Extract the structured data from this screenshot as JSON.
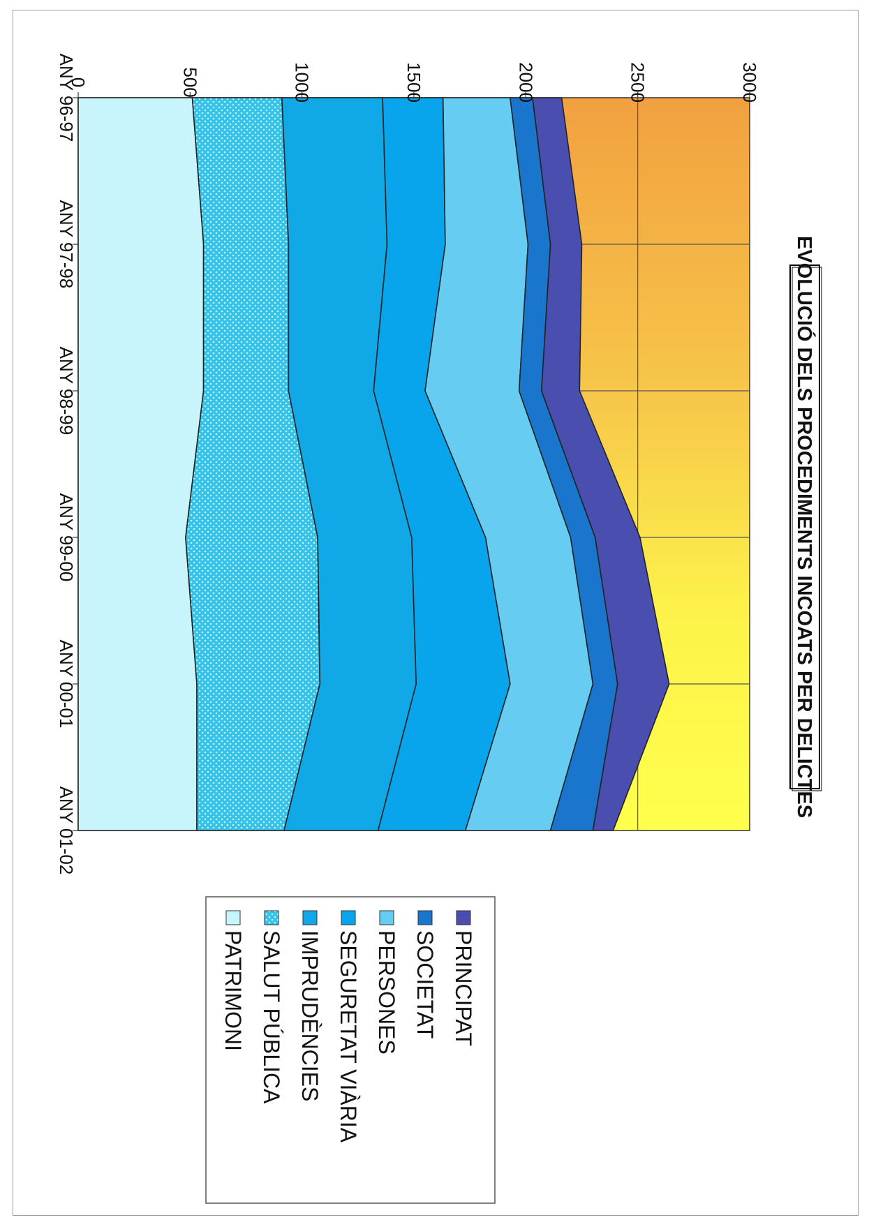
{
  "chart_data": {
    "type": "area",
    "stacked": true,
    "orientation": "rotated-90-clockwise",
    "title": "EVOLUCIÓ DELS PROCEDIMENTS INCOATS PER DELICTES",
    "xlabel": "",
    "ylabel": "",
    "categories": [
      "ANY 96-97",
      "ANY 97-98",
      "ANY 98-99",
      "ANY 99-00",
      "ANY 00-01",
      "ANY 01-02"
    ],
    "ylim": [
      0,
      3000
    ],
    "yticks": [
      0,
      500,
      1000,
      1500,
      2000,
      2500,
      3000
    ],
    "grid": true,
    "legend_position": "bottom",
    "series": [
      {
        "name": "PATRIMONI",
        "values": [
          510,
          560,
          560,
          480,
          530,
          530
        ],
        "color": "#c8f4fb",
        "pattern": "none"
      },
      {
        "name": "SALUT PÚBLICA",
        "values": [
          400,
          380,
          380,
          590,
          550,
          390
        ],
        "color": "#3cc8ec",
        "pattern": "dots"
      },
      {
        "name": "IMPRUDÈNCIES",
        "values": [
          450,
          440,
          380,
          420,
          430,
          420
        ],
        "color": "#10a8e6",
        "pattern": "none"
      },
      {
        "name": "SEGURETAT VIÀRIA",
        "values": [
          270,
          260,
          230,
          330,
          420,
          390
        ],
        "color": "#08a4ec",
        "pattern": "none"
      },
      {
        "name": "PERSONES",
        "values": [
          300,
          370,
          420,
          380,
          370,
          380
        ],
        "color": "#66ccf2",
        "pattern": "none"
      },
      {
        "name": "SOCIETAT",
        "values": [
          100,
          100,
          100,
          110,
          110,
          190
        ],
        "color": "#1a76cc",
        "pattern": "none"
      },
      {
        "name": "PRINCIPAT",
        "values": [
          130,
          140,
          170,
          200,
          230,
          90
        ],
        "color": "#4a4eaf",
        "pattern": "none"
      }
    ]
  }
}
